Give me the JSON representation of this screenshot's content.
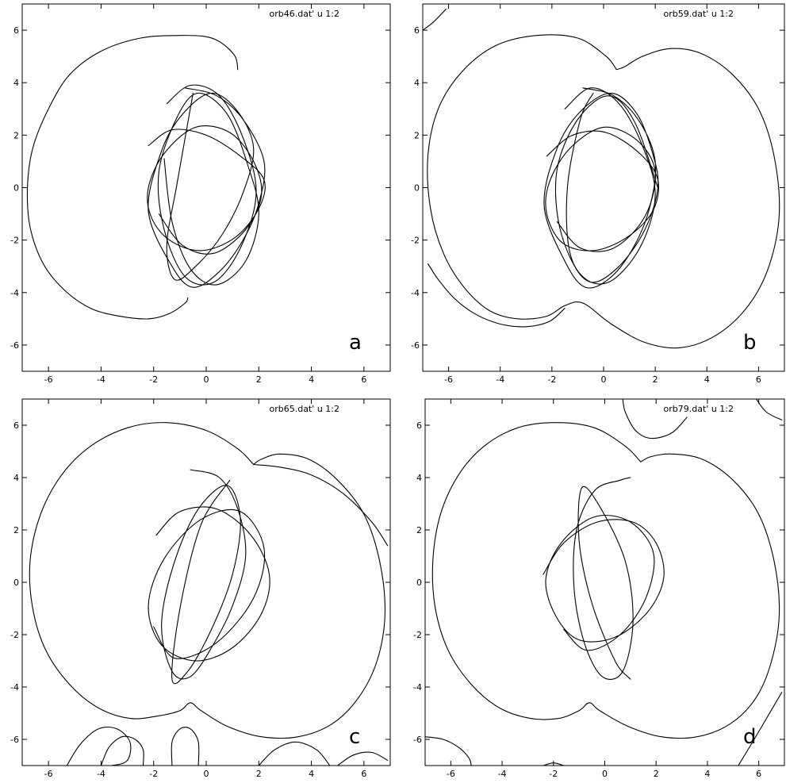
{
  "chart_data": [
    {
      "type": "line",
      "panel_label": "a",
      "legend": "orb46.dat' u 1:2",
      "xlim": [
        -7,
        7
      ],
      "ylim": [
        -7,
        7
      ],
      "xticks": [
        -6,
        -4,
        -2,
        0,
        2,
        4,
        6
      ],
      "yticks": [
        6,
        4,
        2,
        0,
        -2,
        -4,
        -6
      ],
      "grid": false,
      "legend_position": "top-right",
      "series": [
        {
          "x": [
            1.2,
            1.1,
            0.6,
            0.0,
            -1.0,
            -2.5,
            -4.0,
            -5.2,
            -6.0,
            -6.6,
            -6.8,
            -6.7,
            -6.2,
            -5.4,
            -4.4,
            -3.3,
            -2.2,
            -1.4,
            -0.8,
            -0.7
          ],
          "y": [
            4.5,
            5.0,
            5.5,
            5.75,
            5.8,
            5.7,
            5.2,
            4.3,
            3.0,
            1.5,
            0.0,
            -1.5,
            -2.9,
            -3.9,
            -4.6,
            -4.9,
            -5.0,
            -4.8,
            -4.4,
            -4.2
          ]
        },
        {
          "x": [
            -0.8,
            0.4,
            1.4,
            2.2,
            2.0,
            1.4,
            0.5,
            -0.5,
            -1.3,
            -2.2,
            -1.7,
            -0.9,
            0.2,
            1.2,
            1.8,
            1.4,
            0.6,
            -0.4,
            -1.2,
            -1.5,
            -1.1,
            -0.5
          ],
          "y": [
            3.8,
            3.5,
            2.6,
            1.0,
            -0.6,
            -2.0,
            -3.2,
            -3.8,
            -3.0,
            -0.9,
            1.4,
            2.8,
            3.6,
            2.9,
            1.5,
            -0.2,
            -1.8,
            -3.0,
            -3.5,
            -2.2,
            0.2,
            3.6
          ]
        },
        {
          "x": [
            -1.5,
            -0.6,
            0.5,
            1.4,
            1.9,
            1.3,
            0.3,
            -0.8,
            -1.6,
            -1.8,
            -1.1,
            -0.3,
            0.8,
            1.6,
            2.0,
            1.5,
            0.4,
            -0.6,
            -1.3,
            -1.6
          ],
          "y": [
            3.2,
            3.9,
            3.5,
            1.9,
            -0.2,
            -2.3,
            -3.6,
            -3.4,
            -1.6,
            0.6,
            2.7,
            3.6,
            2.8,
            0.8,
            -1.0,
            -2.8,
            -3.7,
            -3.1,
            -1.3,
            1.1
          ]
        },
        {
          "x": [
            -2.2,
            -1.3,
            0.0,
            1.3,
            2.2,
            2.0,
            1.1,
            -0.2,
            -1.4,
            -2.1,
            -2.2,
            -1.6,
            -0.4,
            0.9,
            1.8,
            2.1,
            1.5,
            0.3,
            -0.9,
            -1.8
          ],
          "y": [
            1.6,
            2.2,
            2.0,
            1.2,
            0.3,
            -0.8,
            -1.9,
            -2.4,
            -2.0,
            -1.1,
            0.0,
            1.3,
            2.3,
            2.1,
            1.0,
            -0.3,
            -1.6,
            -2.5,
            -2.2,
            -1.0
          ]
        }
      ]
    },
    {
      "type": "line",
      "panel_label": "b",
      "legend": "orb59.dat' u 1:2",
      "xlim": [
        -7,
        7
      ],
      "ylim": [
        -7,
        7
      ],
      "xticks": [
        -6,
        -4,
        -2,
        0,
        2,
        4,
        6
      ],
      "yticks": [
        6,
        4,
        2,
        0,
        -2,
        -4,
        -6
      ],
      "grid": false,
      "legend_position": "top-right",
      "series": [
        {
          "x": [
            0.5,
            0.1,
            -1.0,
            -2.6,
            -4.2,
            -5.5,
            -6.4,
            -6.8,
            -6.7,
            -6.2,
            -5.4,
            -4.4,
            -3.3,
            -2.2,
            -1.5,
            -0.8,
            0.3,
            1.6,
            3.0,
            4.4,
            5.6,
            6.4,
            6.8,
            6.6,
            6.0,
            5.0,
            3.8,
            2.6,
            1.5,
            0.8,
            0.5
          ],
          "y": [
            4.5,
            5.0,
            5.7,
            5.8,
            5.4,
            4.4,
            3.0,
            1.2,
            -0.8,
            -2.5,
            -3.8,
            -4.7,
            -5.0,
            -4.9,
            -4.5,
            -4.4,
            -5.2,
            -5.9,
            -6.1,
            -5.6,
            -4.5,
            -3.0,
            -1.0,
            1.2,
            3.0,
            4.3,
            5.1,
            5.3,
            5.0,
            4.6,
            4.5
          ]
        },
        {
          "x": [
            -6.8,
            -6.4,
            -5.8,
            -5.0,
            -4.0,
            -3.0,
            -2.1,
            -1.5
          ],
          "y": [
            -2.9,
            -3.5,
            -4.2,
            -4.8,
            -5.2,
            -5.3,
            -5.1,
            -4.6
          ]
        },
        {
          "x": [
            -7.0,
            -6.6,
            -6.1
          ],
          "y": [
            6.0,
            6.3,
            6.8
          ]
        },
        {
          "x": [
            -0.8,
            0.4,
            1.4,
            2.0,
            1.8,
            1.2,
            0.3,
            -0.7,
            -1.5,
            -2.3,
            -1.8,
            -0.9,
            0.3,
            1.3,
            1.9,
            2.1,
            1.6,
            0.6,
            -0.5,
            -1.3,
            -1.4,
            -0.9,
            -0.4
          ],
          "y": [
            3.8,
            3.5,
            2.5,
            1.0,
            -0.7,
            -2.2,
            -3.4,
            -3.8,
            -2.8,
            -0.7,
            1.5,
            2.9,
            3.6,
            2.8,
            1.3,
            0.0,
            -1.6,
            -3.0,
            -3.6,
            -2.5,
            0.0,
            2.6,
            3.6
          ]
        },
        {
          "x": [
            -1.5,
            -0.5,
            0.6,
            1.5,
            2.0,
            1.4,
            0.2,
            -0.9,
            -1.7,
            -1.8,
            -1.0,
            0.2,
            1.2,
            2.1
          ],
          "y": [
            3.0,
            3.8,
            3.2,
            1.6,
            -0.3,
            -2.3,
            -3.6,
            -3.3,
            -1.5,
            0.7,
            2.6,
            3.5,
            2.5,
            0.0
          ]
        },
        {
          "x": [
            -2.2,
            -1.2,
            0.1,
            1.4,
            2.1,
            1.9,
            0.9,
            -0.4,
            -1.6,
            -2.2,
            -2.1,
            -1.3,
            0.0,
            1.3,
            2.0,
            1.6,
            0.4,
            -0.9,
            -1.8
          ],
          "y": [
            1.2,
            2.0,
            2.1,
            1.3,
            0.3,
            -0.9,
            -1.9,
            -2.4,
            -2.1,
            -1.0,
            0.2,
            1.5,
            2.3,
            1.8,
            0.6,
            -1.1,
            -2.3,
            -2.3,
            -1.3
          ]
        }
      ]
    },
    {
      "type": "line",
      "panel_label": "c",
      "legend": "orb65.dat' u 1:2",
      "xlim": [
        -7,
        7
      ],
      "ylim": [
        -7,
        7
      ],
      "xticks": [
        -6,
        -4,
        -2,
        0,
        2,
        4,
        6
      ],
      "yticks": [
        6,
        4,
        2,
        0,
        -2,
        -4,
        -6
      ],
      "grid": false,
      "legend_position": "top-right",
      "series": [
        {
          "x": [
            1.8,
            1.2,
            0.0,
            -1.5,
            -3.0,
            -4.4,
            -5.5,
            -6.3,
            -6.7,
            -6.6,
            -6.1,
            -5.2,
            -4.1,
            -2.9,
            -1.8,
            -1.0,
            -0.6,
            -0.2,
            0.8,
            2.1,
            3.5,
            4.8,
            5.8,
            6.5,
            6.8,
            6.6,
            6.0,
            5.0,
            3.9,
            2.8,
            2.1,
            1.8
          ],
          "y": [
            4.5,
            5.1,
            5.8,
            6.1,
            5.9,
            5.2,
            4.1,
            2.6,
            0.8,
            -1.0,
            -2.6,
            -3.9,
            -4.8,
            -5.2,
            -5.1,
            -4.9,
            -4.6,
            -4.9,
            -5.5,
            -5.9,
            -5.9,
            -5.4,
            -4.4,
            -3.0,
            -1.2,
            0.8,
            2.6,
            3.9,
            4.7,
            4.9,
            4.7,
            4.5
          ]
        },
        {
          "x": [
            1.8,
            2.8,
            4.0,
            5.2,
            6.3,
            6.9
          ],
          "y": [
            4.5,
            4.4,
            4.1,
            3.4,
            2.3,
            1.4
          ]
        },
        {
          "x": [
            -5.3,
            -4.8,
            -4.1,
            -3.4,
            -2.9,
            -3.0,
            -3.6,
            -4.3
          ],
          "y": [
            -7.0,
            -6.2,
            -5.6,
            -5.6,
            -6.1,
            -6.8,
            -7.0,
            -7.0
          ]
        },
        {
          "x": [
            -4.0,
            -3.7,
            -3.2,
            -2.7,
            -2.4,
            -2.4
          ],
          "y": [
            -7.0,
            -6.3,
            -5.9,
            -6.0,
            -6.4,
            -7.0
          ]
        },
        {
          "x": [
            -1.3,
            -1.3,
            -1.0,
            -0.6,
            -0.3,
            -0.3
          ],
          "y": [
            -7.0,
            -6.1,
            -5.6,
            -5.6,
            -6.1,
            -7.0
          ]
        },
        {
          "x": [
            2.0,
            2.6,
            3.4,
            4.2,
            4.7
          ],
          "y": [
            -7.0,
            -6.4,
            -6.1,
            -6.4,
            -7.0
          ]
        },
        {
          "x": [
            5.0,
            5.6,
            6.3,
            6.9
          ],
          "y": [
            -7.0,
            -6.6,
            -6.5,
            -6.8
          ]
        },
        {
          "x": [
            -0.6,
            0.5,
            1.2,
            1.5,
            1.0,
            0.2,
            -0.6,
            -1.3,
            -1.7,
            -1.2,
            -0.3,
            0.8,
            1.3,
            1.0,
            0.2,
            -0.7,
            -1.3,
            -1.0,
            -0.2,
            0.9
          ],
          "y": [
            4.3,
            4.0,
            2.8,
            1.0,
            -0.9,
            -2.5,
            -3.6,
            -3.4,
            -1.6,
            0.8,
            2.8,
            3.7,
            2.4,
            0.3,
            -1.8,
            -3.4,
            -3.7,
            -1.0,
            2.2,
            3.9
          ]
        },
        {
          "x": [
            -1.9,
            -1.0,
            0.4,
            1.7,
            2.4,
            2.1,
            1.0,
            -0.4,
            -1.7,
            -2.2,
            -1.6,
            -0.2,
            1.3,
            2.2,
            1.8,
            0.4,
            -1.2,
            -2.0
          ],
          "y": [
            1.8,
            2.7,
            2.8,
            1.8,
            0.3,
            -1.2,
            -2.5,
            -3.0,
            -2.4,
            -0.9,
            0.9,
            2.4,
            2.7,
            1.3,
            -0.6,
            -2.3,
            -2.9,
            -1.7
          ]
        }
      ]
    },
    {
      "type": "line",
      "panel_label": "d",
      "legend": "orb79.dat' u 1:2",
      "xlim": [
        -7,
        7
      ],
      "ylim": [
        -7,
        7
      ],
      "xticks": [
        -6,
        -4,
        -2,
        0,
        2,
        4,
        6
      ],
      "yticks": [
        6,
        4,
        2,
        0,
        -2,
        -4,
        -6
      ],
      "grid": false,
      "legend_position": "top-right",
      "series": [
        {
          "x": [
            1.4,
            0.8,
            -0.4,
            -1.9,
            -3.4,
            -4.7,
            -5.7,
            -6.4,
            -6.7,
            -6.6,
            -6.1,
            -5.2,
            -4.1,
            -2.9,
            -1.8,
            -1.0,
            -0.6,
            -0.2,
            0.9,
            2.2,
            3.6,
            4.9,
            5.9,
            6.5,
            6.8,
            6.6,
            6.0,
            5.0,
            3.8,
            2.6,
            1.8,
            1.4
          ],
          "y": [
            4.6,
            5.2,
            5.9,
            6.1,
            5.9,
            5.2,
            4.1,
            2.6,
            0.8,
            -1.0,
            -2.6,
            -3.9,
            -4.8,
            -5.2,
            -5.2,
            -4.9,
            -4.6,
            -4.9,
            -5.5,
            -5.9,
            -5.9,
            -5.4,
            -4.4,
            -3.0,
            -1.2,
            0.8,
            2.6,
            3.9,
            4.7,
            4.9,
            4.8,
            4.6
          ]
        },
        {
          "x": [
            0.7,
            0.8,
            1.2,
            1.8,
            2.6,
            3.2
          ],
          "y": [
            7.0,
            6.5,
            5.8,
            5.5,
            5.7,
            6.3
          ]
        },
        {
          "x": [
            5.9,
            6.3,
            6.9
          ],
          "y": [
            7.0,
            6.5,
            6.2
          ]
        },
        {
          "x": [
            -7.0,
            -6.3,
            -5.7,
            -5.3,
            -5.2
          ],
          "y": [
            -5.9,
            -6.0,
            -6.3,
            -6.7,
            -7.0
          ]
        },
        {
          "x": [
            -2.4,
            -2.0,
            -1.6
          ],
          "y": [
            -7.0,
            -6.9,
            -7.0
          ]
        },
        {
          "x": [
            5.2,
            5.7,
            6.3,
            6.9
          ],
          "y": [
            -7.0,
            -6.2,
            -5.2,
            -4.2
          ]
        },
        {
          "x": [
            1.0,
            0.6,
            -0.4,
            -1.1,
            -1.2,
            -0.8,
            -0.1,
            0.7,
            1.1,
            0.8,
            -0.2,
            -0.9,
            -1.0,
            -0.5,
            0.4,
            1.0
          ],
          "y": [
            4.0,
            3.9,
            3.5,
            2.0,
            -0.2,
            -2.3,
            -3.6,
            -3.4,
            -1.5,
            0.8,
            2.9,
            3.6,
            1.6,
            -0.8,
            -3.0,
            -3.7
          ]
        },
        {
          "x": [
            -2.4,
            -1.6,
            -0.3,
            1.1,
            2.0,
            2.3,
            1.7,
            0.4,
            -1.0,
            -1.9,
            -2.3,
            -1.7,
            -0.4,
            1.0,
            1.9,
            1.6,
            0.6,
            -0.7,
            -1.6
          ],
          "y": [
            0.3,
            1.5,
            2.3,
            2.3,
            1.5,
            0.2,
            -1.1,
            -2.1,
            -2.2,
            -1.3,
            0.1,
            1.5,
            2.5,
            2.3,
            1.1,
            -0.6,
            -2.0,
            -2.6,
            -1.8
          ]
        }
      ]
    }
  ]
}
